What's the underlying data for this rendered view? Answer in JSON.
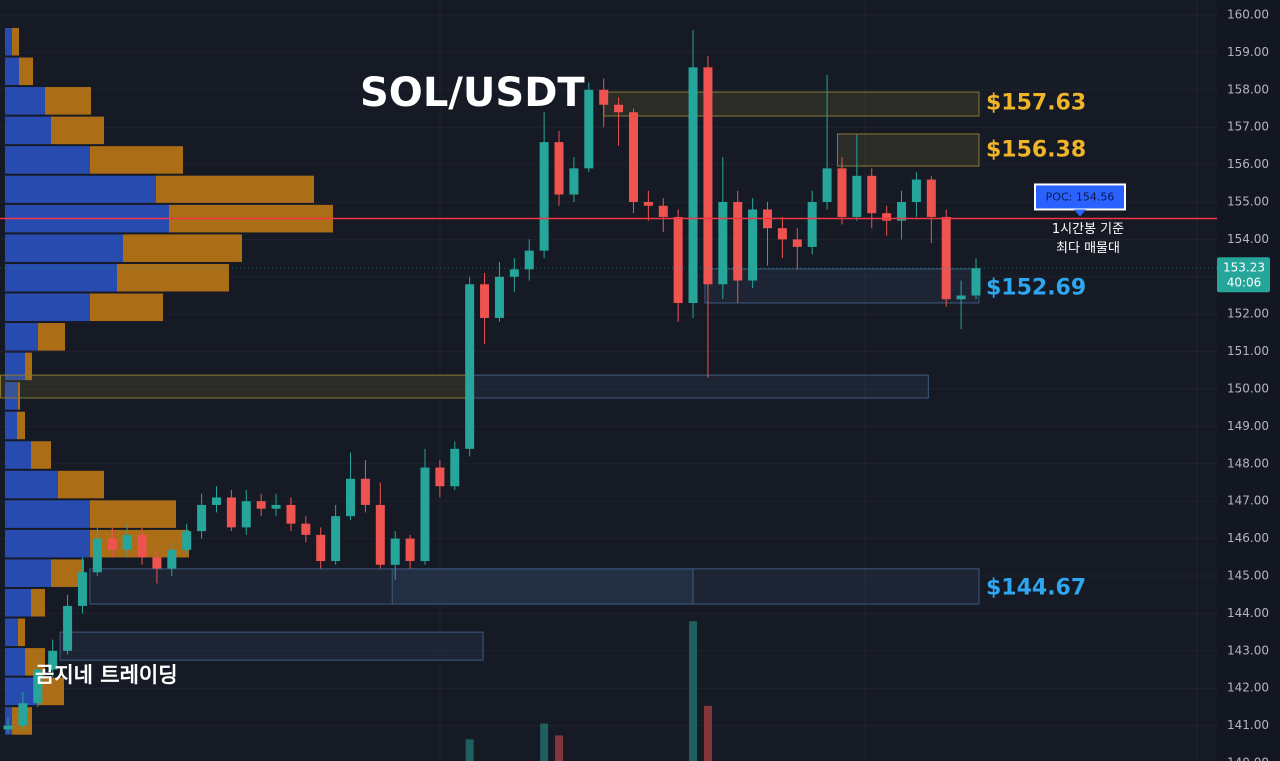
{
  "chart_data": {
    "type": "candlestick",
    "title": "SOL/USDT",
    "watermark": "곰지네 트레이딩",
    "up_color": "#26a69a",
    "down_color": "#ef5350",
    "ylim": [
      140,
      160
    ],
    "yticks": [
      {
        "value": 140,
        "label": "140.00"
      },
      {
        "value": 141,
        "label": "141.00"
      },
      {
        "value": 142,
        "label": "142.00"
      },
      {
        "value": 143,
        "label": "143.00"
      },
      {
        "value": 144,
        "label": "144.00"
      },
      {
        "value": 145,
        "label": "145.00"
      },
      {
        "value": 146,
        "label": "146.00"
      },
      {
        "value": 147,
        "label": "147.00"
      },
      {
        "value": 148,
        "label": "148.00"
      },
      {
        "value": 149,
        "label": "149.00"
      },
      {
        "value": 150,
        "label": "150.00"
      },
      {
        "value": 151,
        "label": "151.00"
      },
      {
        "value": 152,
        "label": "152.00"
      },
      {
        "value": 153,
        "label": "153.00"
      },
      {
        "value": 154,
        "label": "154.00"
      },
      {
        "value": 155,
        "label": "155.00"
      },
      {
        "value": 156,
        "label": "156.00"
      },
      {
        "value": 157,
        "label": "157.00"
      },
      {
        "value": 158,
        "label": "158.00"
      },
      {
        "value": 159,
        "label": "159.00"
      },
      {
        "value": 160,
        "label": "160.00"
      }
    ],
    "grid": true,
    "open": [
      140.9,
      141.0,
      141.6,
      142.5,
      143.0,
      144.2,
      145.1,
      146.0,
      145.7,
      146.1,
      145.5,
      145.2,
      145.7,
      146.2,
      146.9,
      147.1,
      146.3,
      147.0,
      146.8,
      146.9,
      146.4,
      146.1,
      145.4,
      146.6,
      147.6,
      146.9,
      145.3,
      146.0,
      145.4,
      147.9,
      147.4,
      148.4,
      152.8,
      151.9,
      153.0,
      153.2,
      153.7,
      156.6,
      155.2,
      155.9,
      158.0,
      157.6,
      157.4,
      155.0,
      154.9,
      154.6,
      152.3,
      158.6,
      152.8,
      155.0,
      152.9,
      154.8,
      154.3,
      154.0,
      153.8,
      155.0,
      155.9,
      154.6,
      155.7,
      154.7,
      154.5,
      155.0,
      155.6,
      154.6,
      152.4,
      152.5
    ],
    "high": [
      141.2,
      141.9,
      142.7,
      143.3,
      144.5,
      145.5,
      146.3,
      146.3,
      146.4,
      146.3,
      145.7,
      145.9,
      146.4,
      147.2,
      147.4,
      147.3,
      147.3,
      147.2,
      147.2,
      147.1,
      146.6,
      146.3,
      146.9,
      148.3,
      148.1,
      147.5,
      146.2,
      146.1,
      148.4,
      148.1,
      148.6,
      153.0,
      153.1,
      153.4,
      153.5,
      154.0,
      157.4,
      156.9,
      156.2,
      158.2,
      158.3,
      157.8,
      157.5,
      155.3,
      155.1,
      154.8,
      159.6,
      158.9,
      156.2,
      155.3,
      155.1,
      155.0,
      154.6,
      154.3,
      155.3,
      158.4,
      156.2,
      156.8,
      155.9,
      154.9,
      155.3,
      155.8,
      155.7,
      154.8,
      152.9,
      153.5
    ],
    "low": [
      140.8,
      140.9,
      141.5,
      142.3,
      142.9,
      144.0,
      145.0,
      145.5,
      145.5,
      145.3,
      144.8,
      145.0,
      145.6,
      146.0,
      146.7,
      146.2,
      146.1,
      146.6,
      146.6,
      146.2,
      145.9,
      145.2,
      145.3,
      146.5,
      146.7,
      145.2,
      144.9,
      145.2,
      145.3,
      147.1,
      147.3,
      148.2,
      151.2,
      151.8,
      152.6,
      152.9,
      153.5,
      154.9,
      155.0,
      155.8,
      157.0,
      156.5,
      154.7,
      154.5,
      154.2,
      151.8,
      151.9,
      150.3,
      152.4,
      152.3,
      152.7,
      153.3,
      153.5,
      153.2,
      153.6,
      154.8,
      154.4,
      154.5,
      154.3,
      154.1,
      154.0,
      154.6,
      153.9,
      152.2,
      151.6,
      152.4
    ],
    "close": [
      141.0,
      141.6,
      142.5,
      143.0,
      144.2,
      145.1,
      146.0,
      145.7,
      146.1,
      145.5,
      145.2,
      145.7,
      146.2,
      146.9,
      147.1,
      146.3,
      147.0,
      146.8,
      146.9,
      146.4,
      146.1,
      145.4,
      146.6,
      147.6,
      146.9,
      145.3,
      146.0,
      145.4,
      147.9,
      147.4,
      148.4,
      152.8,
      151.9,
      153.0,
      153.2,
      153.7,
      156.6,
      155.2,
      155.9,
      158.0,
      157.6,
      157.4,
      155.0,
      154.9,
      154.6,
      152.3,
      158.6,
      152.8,
      155.0,
      152.9,
      154.8,
      154.3,
      154.0,
      153.8,
      155.0,
      155.9,
      154.6,
      155.7,
      154.7,
      154.5,
      155.0,
      155.6,
      154.6,
      152.4,
      152.5,
      153.23
    ],
    "volume": [
      null,
      null,
      null,
      null,
      null,
      null,
      null,
      null,
      null,
      null,
      null,
      null,
      null,
      null,
      null,
      null,
      null,
      null,
      null,
      null,
      null,
      null,
      null,
      null,
      null,
      null,
      null,
      null,
      null,
      null,
      null,
      22,
      null,
      null,
      null,
      null,
      38,
      26,
      null,
      null,
      null,
      null,
      null,
      null,
      null,
      null,
      142,
      56,
      null,
      null,
      null,
      null,
      null,
      null,
      null,
      null,
      null,
      null,
      null,
      null,
      null,
      null,
      null,
      null,
      null,
      null
    ],
    "volume_lim": [
      0,
      760
    ],
    "profile_bins": [
      159.68,
      158.89,
      158.1,
      157.31,
      156.52,
      155.73,
      154.95,
      154.16,
      153.37,
      152.58,
      151.79,
      151.0,
      150.21,
      149.42,
      148.63,
      147.84,
      147.05,
      146.26,
      145.47,
      144.68,
      143.89,
      143.1,
      142.31,
      141.52,
      140.73
    ],
    "profile_xlim": [
      0,
      330
    ],
    "profile_series": [
      {
        "color": "#2a55c8",
        "values": [
          7,
          14,
          40,
          46,
          85,
          151,
          164,
          118,
          112,
          85,
          33,
          20,
          13,
          12,
          26,
          53,
          85,
          85,
          46,
          26,
          13,
          20,
          33,
          7
        ]
      },
      {
        "color": "#c77d15",
        "values": [
          7,
          14,
          46,
          53,
          93,
          158,
          164,
          119,
          112,
          73,
          27,
          7,
          2,
          8,
          20,
          46,
          86,
          99,
          33,
          14,
          7,
          20,
          26,
          20
        ]
      }
    ],
    "zones": [
      {
        "top": 157.94,
        "bottom": 157.3,
        "start": 40,
        "end": 65.2,
        "color": "#8a7a30",
        "level": 157.63,
        "label": "$157.63",
        "label_color": "#f0b429"
      },
      {
        "top": 156.82,
        "bottom": 155.96,
        "start": 55.7,
        "end": 65.2,
        "color": "#8a7a30",
        "level": 156.38,
        "label": "$156.38",
        "label_color": "#f0b429"
      },
      {
        "top": 153.21,
        "bottom": 152.3,
        "start": 46.8,
        "end": 65.2,
        "color": "#3d5a80",
        "level": 152.69,
        "label": "$152.69",
        "label_color": "#2ea6f0"
      },
      {
        "top": 150.37,
        "bottom": 149.76,
        "start": -0.5,
        "end": 31,
        "color": "#8a7a30"
      },
      {
        "top": 150.37,
        "bottom": 149.76,
        "start": 31,
        "end": 61.8,
        "color": "#3d5a80"
      },
      {
        "top": 145.19,
        "bottom": 144.25,
        "start": 5.5,
        "end": 65.2,
        "color": "#3d5a80",
        "level": 144.67,
        "label": "$144.67",
        "label_color": "#2ea6f0"
      },
      {
        "top": 145.19,
        "bottom": 144.25,
        "start": 25.8,
        "end": 46,
        "color": "#3d5a80"
      },
      {
        "top": 143.5,
        "bottom": 142.75,
        "start": 3.5,
        "end": 31.9,
        "color": "#3d5a80"
      }
    ],
    "poc": {
      "value": 154.56,
      "label": "POC: 154.56",
      "color": "#f23645"
    },
    "poc_note": [
      "1시간봉 기준",
      "최다 매물대"
    ],
    "current_price": 153.23,
    "countdown": "40:06"
  }
}
